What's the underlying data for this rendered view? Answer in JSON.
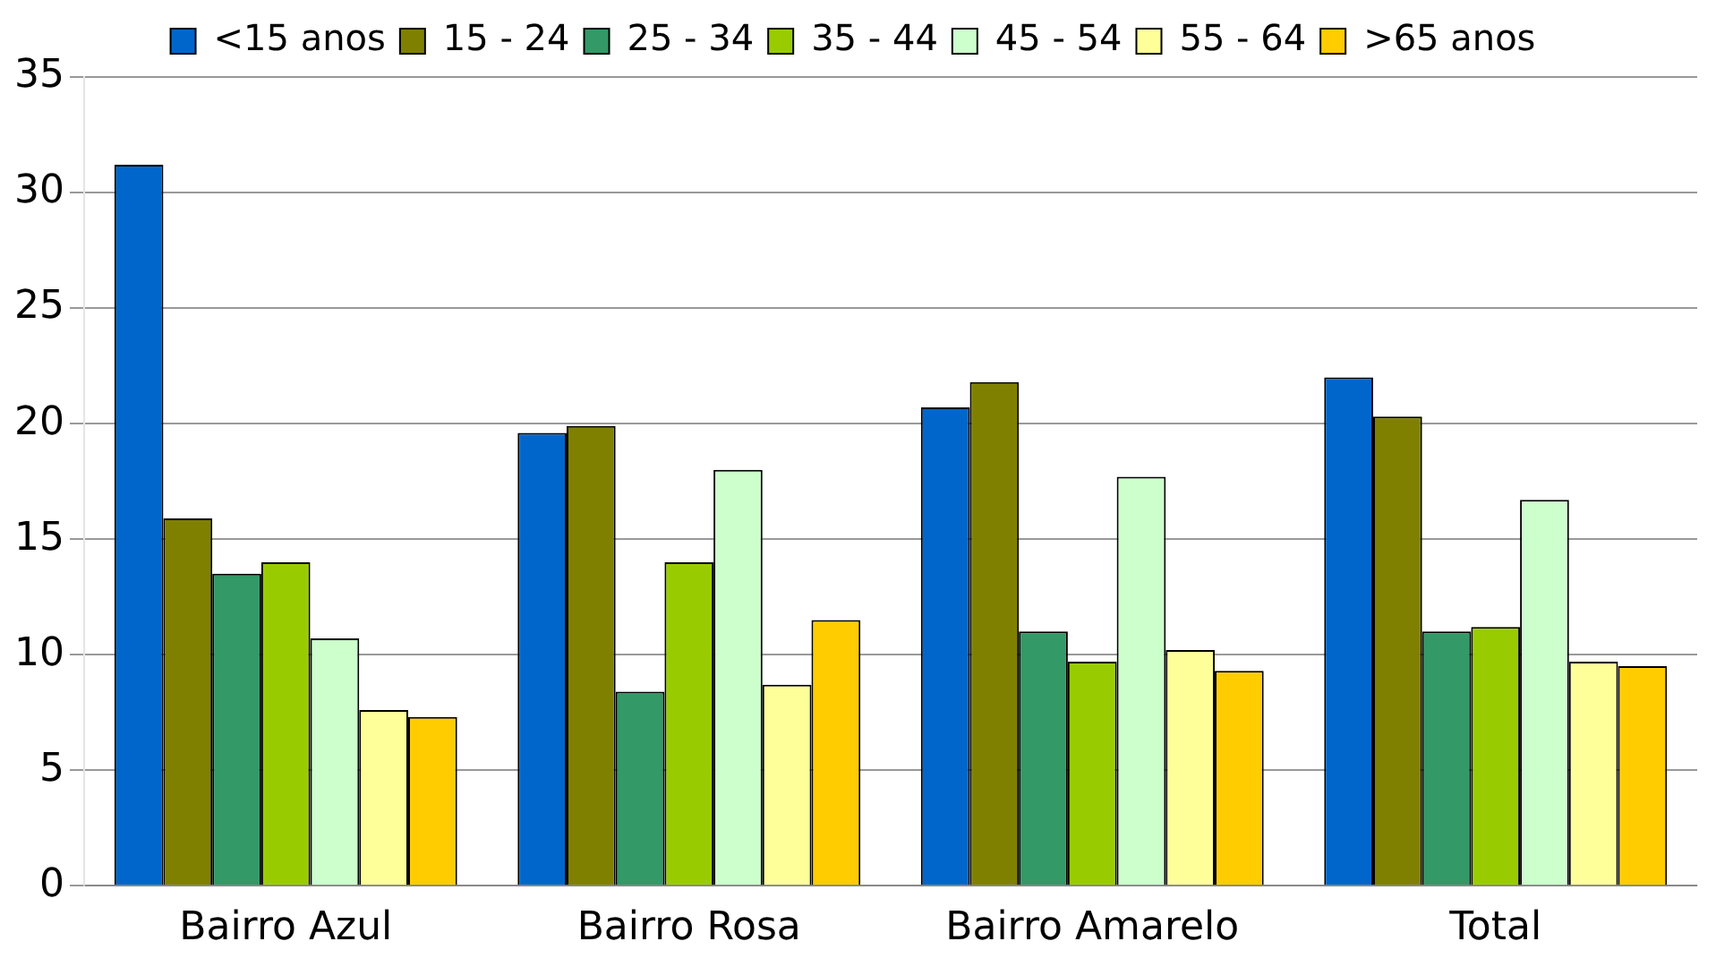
{
  "chart_data": {
    "type": "bar",
    "categories": [
      "Bairro Azul",
      "Bairro Rosa",
      "Bairro Amarelo",
      "Total"
    ],
    "series": [
      {
        "name": "<15 anos",
        "color": "#0066cc",
        "values": [
          31.2,
          19.6,
          20.7,
          22
        ]
      },
      {
        "name": "15 - 24",
        "color": "#808000",
        "values": [
          15.9,
          19.9,
          21.8,
          20.3
        ]
      },
      {
        "name": "25 - 34",
        "color": "#339966",
        "values": [
          13.5,
          8.4,
          11,
          11
        ]
      },
      {
        "name": "35 - 44",
        "color": "#99cc00",
        "values": [
          14,
          14,
          9.7,
          11.2
        ]
      },
      {
        "name": "45 - 54",
        "color": "#ccffcc",
        "values": [
          10.7,
          18,
          17.7,
          16.7
        ]
      },
      {
        "name": "55 - 64",
        "color": "#ffff99",
        "values": [
          7.6,
          8.7,
          10.2,
          9.7
        ]
      },
      {
        "name": ">65 anos",
        "color": "#ffcc00",
        "values": [
          7.3,
          11.5,
          9.3,
          9.5
        ]
      }
    ],
    "ylim": [
      0,
      35
    ],
    "yticks": [
      0,
      5,
      10,
      15,
      20,
      25,
      30,
      35
    ],
    "grid": "y",
    "legend": "top"
  }
}
